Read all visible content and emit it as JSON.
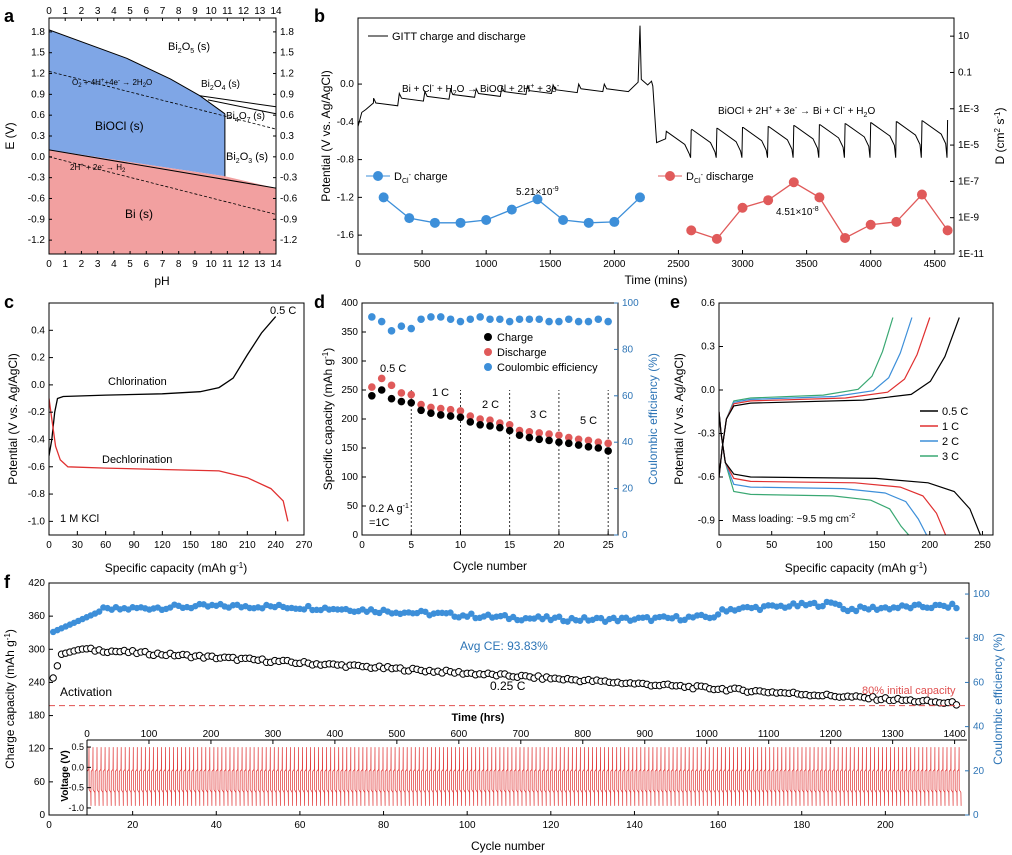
{
  "colors": {
    "axis": "#000000",
    "blue_region": "#7fa6e6",
    "pink_region": "#f2a0a0",
    "blue_marker": "#3d8fd9",
    "red_marker": "#e05a5a",
    "black_marker": "#000000",
    "ce_axis": "#2e75b6",
    "red_line": "#e03030",
    "green_line": "#3aa873",
    "note_red": "#e05050"
  },
  "chart_data": [
    {
      "panel": "a",
      "type": "diagram",
      "xlabel": "pH",
      "ylabel": "E (V)",
      "xlim": [
        0,
        14
      ],
      "ylim": [
        -1.4,
        2.0
      ],
      "xticks": [
        "0",
        "1",
        "2",
        "3",
        "4",
        "5",
        "6",
        "7",
        "8",
        "9",
        "10",
        "11",
        "12",
        "13",
        "14"
      ],
      "yticks": [
        1.8,
        1.5,
        1.2,
        0.9,
        0.6,
        0.3,
        0.0,
        -0.3,
        -0.6,
        -0.9,
        -1.2
      ],
      "ytick_labels": [
        "1.8",
        "1.5",
        "1.2",
        "0.9",
        "0.6",
        "0.3",
        "0.0",
        "-0.3",
        "-0.6",
        "-0.9",
        "-1.2"
      ],
      "regions": {
        "biocl": [
          [
            0,
            1.83
          ],
          [
            4.8,
            1.42
          ],
          [
            7.5,
            1.12
          ],
          [
            9.3,
            0.88
          ],
          [
            10.85,
            0.62
          ],
          [
            10.85,
            -0.28
          ],
          [
            0,
            0.1
          ]
        ],
        "bi": [
          [
            0,
            0.1
          ],
          [
            10.85,
            -0.28
          ],
          [
            14,
            -0.45
          ],
          [
            14,
            -1.4
          ],
          [
            0,
            -1.4
          ]
        ]
      },
      "boundaries": [
        [
          [
            0,
            1.83
          ],
          [
            4.8,
            1.42
          ],
          [
            7.5,
            1.12
          ],
          [
            9.3,
            0.88
          ],
          [
            10.85,
            0.62
          ]
        ],
        [
          [
            9.3,
            0.88
          ],
          [
            14,
            0.72
          ]
        ],
        [
          [
            9.8,
            0.82
          ],
          [
            14,
            0.62
          ]
        ],
        [
          [
            10.85,
            0.62
          ],
          [
            10.85,
            -0.28
          ]
        ],
        [
          [
            0,
            0.1
          ],
          [
            14,
            -0.45
          ]
        ]
      ],
      "dashed": [
        [
          [
            0,
            1.23
          ],
          [
            14,
            0.4
          ]
        ],
        [
          [
            0,
            0.0
          ],
          [
            14,
            -0.83
          ]
        ]
      ],
      "labels": {
        "bi2o5": "Bi2O5 (s)",
        "bi2o4": "Bi2O4 (s)",
        "bi4o7": "Bi4O7 (s)",
        "bi2o3": "Bi2O3 (s)",
        "biocl": "BiOCl (s)",
        "bi": "Bi (s)",
        "o2": "O2 + 4H+ + 4e- → 2H2O",
        "h2": "2H+ + 2e- → H2"
      }
    },
    {
      "panel": "b",
      "type": "line+scatter",
      "xlabel": "Time (mins)",
      "ylabel": "Potential (V vs. Ag/AgCl)",
      "y2label": "D (cm2 s-1)",
      "xlim": [
        0,
        4650
      ],
      "ylim": [
        -1.8,
        0.7
      ],
      "xticks": [
        0,
        500,
        1000,
        1500,
        2000,
        2500,
        3000,
        3500,
        4000,
        4500
      ],
      "yticks": [
        0.0,
        -0.4,
        -0.8,
        -1.2,
        -1.6
      ],
      "ytick_labels": [
        "0.0",
        "-0.4",
        "-0.8",
        "-1.2",
        "-1.6"
      ],
      "y2_ticks_log": [
        1,
        -1,
        -3,
        -5,
        -7,
        -9,
        -11
      ],
      "y2_tick_labels": [
        "10",
        "0.1",
        "1E-3",
        "1E-5",
        "1E-7",
        "1E-9",
        "1E-11"
      ],
      "legend_gitt": "GITT charge and discharge",
      "legend_charge": "DCl- charge",
      "legend_discharge": "DCl- discharge",
      "reaction_charge": "Bi + Cl- + H2O → BiOCl + 2H+ + 3e-",
      "reaction_discharge": "BiOCl + 2H+ + 3e- → Bi + Cl- + H2O",
      "annotation_1": "5.21×10-9",
      "annotation_2": "4.51×10-8",
      "charge_points": [
        [
          200,
          -1.2
        ],
        [
          400,
          -1.42
        ],
        [
          600,
          -1.47
        ],
        [
          800,
          -1.47
        ],
        [
          1000,
          -1.44
        ],
        [
          1200,
          -1.33
        ],
        [
          1400,
          -1.22
        ],
        [
          1600,
          -1.44
        ],
        [
          1800,
          -1.47
        ],
        [
          2000,
          -1.46
        ],
        [
          2200,
          -1.2
        ]
      ],
      "discharge_points": [
        [
          2600,
          -1.55
        ],
        [
          2800,
          -1.64
        ],
        [
          3000,
          -1.31
        ],
        [
          3200,
          -1.23
        ],
        [
          3400,
          -1.04
        ],
        [
          3600,
          -1.2
        ],
        [
          3800,
          -1.63
        ],
        [
          4000,
          -1.49
        ],
        [
          4200,
          -1.46
        ],
        [
          4400,
          -1.17
        ],
        [
          4600,
          -1.55
        ]
      ]
    },
    {
      "panel": "c",
      "type": "line",
      "xlabel": "Specific capacity (mAh g-1)",
      "ylabel": "Potential (V vs. Ag/AgCl)",
      "xlim": [
        0,
        270
      ],
      "ylim": [
        -1.1,
        0.6
      ],
      "xticks": [
        0,
        30,
        60,
        90,
        120,
        150,
        180,
        210,
        240,
        270
      ],
      "yticks": [
        0.4,
        0.2,
        0.0,
        -0.2,
        -0.4,
        -0.6,
        -0.8,
        -1.0
      ],
      "ytick_labels": [
        "0.4",
        "0.2",
        "0.0",
        "-0.2",
        "-0.4",
        "-0.6",
        "-0.8",
        "-1.0"
      ],
      "rate": "0.5 C",
      "label_chlorination": "Chlorination",
      "label_dechlorination": "Dechlorination",
      "electrolyte": "1 M KCl",
      "chlorination": [
        [
          0,
          -0.52
        ],
        [
          3,
          -0.4
        ],
        [
          6,
          -0.2
        ],
        [
          9,
          -0.1
        ],
        [
          15,
          -0.085
        ],
        [
          60,
          -0.075
        ],
        [
          120,
          -0.065
        ],
        [
          160,
          -0.05
        ],
        [
          180,
          -0.02
        ],
        [
          195,
          0.05
        ],
        [
          210,
          0.22
        ],
        [
          225,
          0.38
        ],
        [
          240,
          0.5
        ]
      ],
      "dechlorination": [
        [
          0,
          -0.1
        ],
        [
          3,
          -0.25
        ],
        [
          7,
          -0.45
        ],
        [
          12,
          -0.55
        ],
        [
          20,
          -0.6
        ],
        [
          60,
          -0.61
        ],
        [
          120,
          -0.62
        ],
        [
          180,
          -0.63
        ],
        [
          210,
          -0.68
        ],
        [
          235,
          -0.76
        ],
        [
          248,
          -0.85
        ],
        [
          253,
          -1.0
        ]
      ]
    },
    {
      "panel": "d",
      "type": "scatter",
      "xlabel": "Cycle number",
      "ylabel": "Specific capacity (mAh g-1)",
      "y2label": "Coulombic efficiency (%)",
      "xlim": [
        0,
        26
      ],
      "ylim": [
        0,
        400
      ],
      "y2lim": [
        0,
        100
      ],
      "xticks": [
        0,
        5,
        10,
        15,
        20,
        25
      ],
      "yticks": [
        0,
        50,
        100,
        150,
        200,
        250,
        300,
        350,
        400
      ],
      "y2ticks": [
        0,
        20,
        40,
        60,
        80,
        100
      ],
      "legend": [
        "Charge",
        "Discharge",
        "Coulombic efficiency"
      ],
      "rate_labels": [
        "0.5 C",
        "1 C",
        "2 C",
        "3 C",
        "5 C"
      ],
      "rate_note_1": "0.2 A g-1",
      "rate_note_2": "=1C",
      "charge": [
        240,
        250,
        235,
        230,
        228,
        215,
        210,
        207,
        205,
        203,
        195,
        190,
        188,
        185,
        180,
        172,
        168,
        165,
        163,
        160,
        158,
        155,
        152,
        150,
        145
      ],
      "discharge": [
        255,
        270,
        258,
        245,
        242,
        225,
        220,
        218,
        216,
        214,
        205,
        200,
        198,
        193,
        190,
        180,
        178,
        176,
        174,
        172,
        168,
        165,
        163,
        160,
        158
      ],
      "ce": [
        94,
        92,
        88,
        90,
        89,
        93,
        94,
        94,
        93,
        92,
        93,
        94,
        93,
        93,
        92,
        93,
        93,
        93,
        92,
        92,
        93,
        92,
        92,
        93,
        92
      ]
    },
    {
      "panel": "e",
      "type": "line",
      "xlabel": "Specific capacity (mAh g-1)",
      "ylabel": "Potential (V vs. Ag/AgCl)",
      "xlim": [
        0,
        260
      ],
      "ylim": [
        -1.0,
        0.6
      ],
      "xticks": [
        0,
        50,
        100,
        150,
        200,
        250
      ],
      "yticks": [
        0.6,
        0.3,
        0.0,
        -0.3,
        -0.6,
        -0.9
      ],
      "ytick_labels": [
        "0.6",
        "0.3",
        "0.0",
        "-0.3",
        "-0.6",
        "-0.9"
      ],
      "legend": [
        "0.5 C",
        "1 C",
        "2 C",
        "3 C"
      ],
      "mass_loading": "Mass loading: ~9.5 mg cm-2",
      "charge_end": [
        228,
        200,
        183,
        165
      ],
      "discharge_end": [
        248,
        215,
        197,
        180
      ],
      "plateau_charge": [
        -0.09,
        -0.075,
        -0.065,
        -0.055
      ],
      "plateau_discharge": [
        -0.6,
        -0.63,
        -0.67,
        -0.72
      ]
    },
    {
      "panel": "f",
      "type": "scatter",
      "xlabel": "Cycle number",
      "ylabel": "Charge capacity (mAh g-1)",
      "y2label": "Coulombic efficiency (%)",
      "inset_xlabel": "Time (hrs)",
      "inset_ylabel": "Voltage (V)",
      "xlim": [
        0,
        220
      ],
      "ylim": [
        0,
        420
      ],
      "y2lim": [
        0,
        105
      ],
      "xticks": [
        0,
        20,
        40,
        60,
        80,
        100,
        120,
        140,
        160,
        180,
        200
      ],
      "yticks": [
        0,
        60,
        120,
        180,
        240,
        300,
        360,
        420
      ],
      "y2ticks": [
        0,
        20,
        40,
        60,
        80,
        100
      ],
      "inset_xticks": [
        0,
        100,
        200,
        300,
        400,
        500,
        600,
        700,
        800,
        900,
        1000,
        1100,
        1200,
        1300,
        1400
      ],
      "inset_xlim": [
        0,
        1420
      ],
      "inset_yticks": [
        0.5,
        0.0,
        -0.5,
        -1.0
      ],
      "inset_ytick_labels": [
        "0.5",
        "0.0",
        "-0.5",
        "-1.0"
      ],
      "avg_ce": "Avg CE: 93.83%",
      "rate": "0.25 C",
      "activation": "Activation",
      "note_80": "80% initial capacity",
      "retention_line": 198
    }
  ],
  "panel_letters": [
    "a",
    "b",
    "c",
    "d",
    "e",
    "f"
  ]
}
